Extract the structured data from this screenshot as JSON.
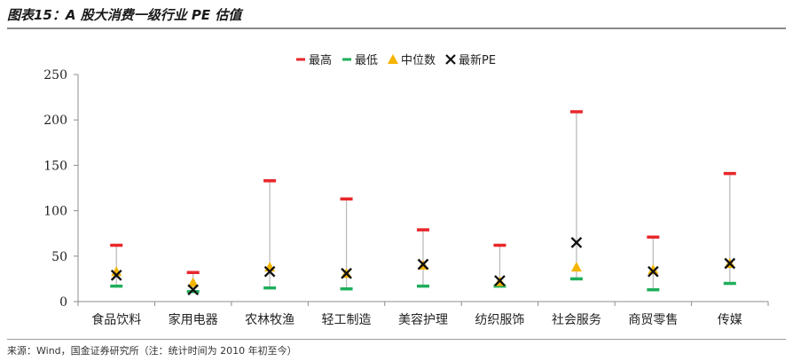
{
  "figure": {
    "title": "图表15：A 股大消费一级行业 PE 估值",
    "source": "来源：Wind，国金证券研究所（注：统计时间为 2010 年初至今）"
  },
  "colors": {
    "max": "#e8262a",
    "min": "#1eae5a",
    "median": "#f5b400",
    "latest": "#111111",
    "whisker": "#b8b8b8",
    "axis": "#8c8c8c"
  },
  "chart_data": {
    "type": "scatter",
    "title": "",
    "xlabel": "",
    "ylabel": "",
    "ylim": [
      0,
      250
    ],
    "yticks": [
      0,
      50,
      100,
      150,
      200,
      250
    ],
    "grid": false,
    "legend_position": "top-center",
    "categories": [
      "食品饮料",
      "家用电器",
      "农林牧渔",
      "轻工制造",
      "美容护理",
      "纺织服饰",
      "社会服务",
      "商贸零售",
      "传媒"
    ],
    "series": [
      {
        "name": "最高",
        "marker": "dash",
        "values": [
          62,
          32,
          133,
          113,
          79,
          62,
          209,
          71,
          141
        ]
      },
      {
        "name": "最低",
        "marker": "dash",
        "values": [
          17,
          11,
          15,
          14,
          17,
          17,
          25,
          13,
          20
        ]
      },
      {
        "name": "中位数",
        "marker": "triangle",
        "values": [
          33,
          21,
          38,
          31,
          40,
          22,
          38,
          35,
          42
        ]
      },
      {
        "name": "最新PE",
        "marker": "x",
        "values": [
          29,
          13,
          33,
          31,
          41,
          23,
          65,
          33,
          42
        ]
      }
    ]
  }
}
